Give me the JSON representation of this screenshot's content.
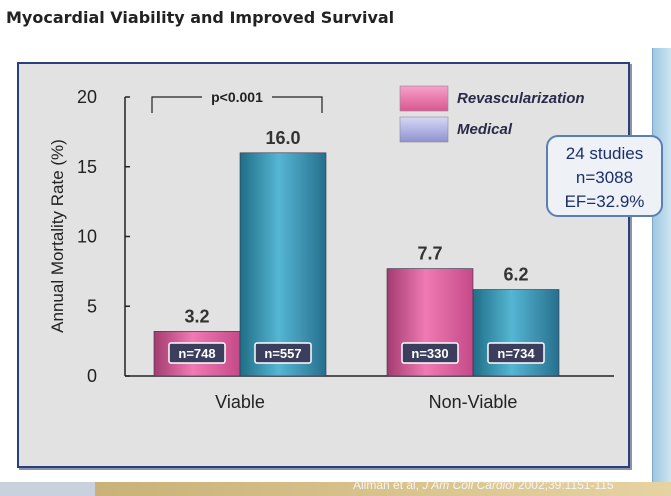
{
  "title": "Myocardial Viability and Improved Survival",
  "stats": [
    "24 studies",
    "n=3088",
    "EF=32.9%"
  ],
  "citation": {
    "pre": "Allman et al, ",
    "journal": "J Am Coll Cardiol",
    "post": " 2002;39:1151-115"
  },
  "colors": {
    "revascularization": "#e55c9e",
    "medical": "#2d8ba8",
    "panel_border": "#2a3f7e",
    "stats_text": "#1c2f6b"
  },
  "chart_data": {
    "type": "bar",
    "ylabel": "Annual Mortality Rate (%)",
    "ylim": [
      0,
      20
    ],
    "yticks": [
      "0",
      "5",
      "10",
      "15",
      "20"
    ],
    "categories": [
      "Viable",
      "Non-Viable"
    ],
    "series": [
      {
        "name": "Revascularization",
        "values": [
          3.2,
          7.7
        ],
        "value_labels": [
          "3.2",
          "7.7"
        ],
        "n_labels": [
          "n=748",
          "n=330"
        ]
      },
      {
        "name": "Medical",
        "values": [
          16.0,
          6.2
        ],
        "value_labels": [
          "16.0",
          "6.2"
        ],
        "n_labels": [
          "n=557",
          "n=734"
        ]
      }
    ],
    "annotation": "p<0.001",
    "legend_position": "top-right",
    "grid": false
  }
}
